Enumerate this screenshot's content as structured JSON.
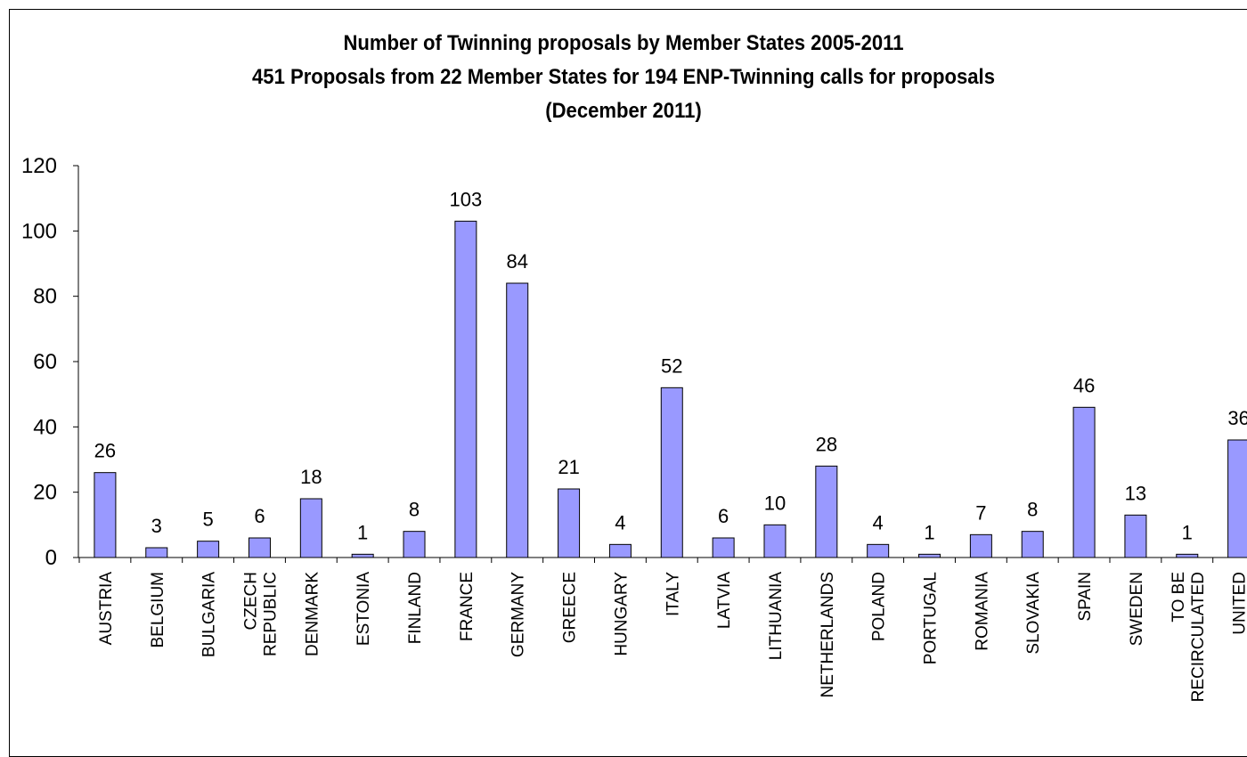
{
  "chart_data": {
    "type": "bar",
    "title": "Number of Twinning proposals by Member States 2005-2011",
    "subtitle": "451 Proposals from 22 Member States for 194 ENP-Twinning calls for proposals",
    "subtitle2": "(December 2011)",
    "xlabel": "",
    "ylabel": "",
    "ylim": [
      0,
      120
    ],
    "yticks": [
      0,
      20,
      40,
      60,
      80,
      100,
      120
    ],
    "grid": false,
    "legend": "none",
    "bar_color": "#9999FF",
    "categories": [
      [
        "AUSTRIA"
      ],
      [
        "BELGIUM"
      ],
      [
        "BULGARIA"
      ],
      [
        "CZECH",
        "REPUBLIC"
      ],
      [
        "DENMARK"
      ],
      [
        "ESTONIA"
      ],
      [
        "FINLAND"
      ],
      [
        "FRANCE"
      ],
      [
        "GERMANY"
      ],
      [
        "GREECE"
      ],
      [
        "HUNGARY"
      ],
      [
        "ITALY"
      ],
      [
        "LATVIA"
      ],
      [
        "LITHUANIA"
      ],
      [
        "NETHERLANDS"
      ],
      [
        "POLAND"
      ],
      [
        "PORTUGAL"
      ],
      [
        "ROMANIA"
      ],
      [
        "SLOVAKIA"
      ],
      [
        "SPAIN"
      ],
      [
        "SWEDEN"
      ],
      [
        "TO BE",
        "RECIRCULATED"
      ],
      [
        "UNITED"
      ]
    ],
    "values": [
      26,
      3,
      5,
      6,
      18,
      1,
      8,
      103,
      84,
      21,
      4,
      52,
      6,
      10,
      28,
      4,
      1,
      7,
      8,
      46,
      13,
      1,
      36
    ],
    "data_labels": [
      "26",
      "3",
      "5",
      "6",
      "18",
      "1",
      "8",
      "103",
      "84",
      "21",
      "4",
      "52",
      "6",
      "10",
      "28",
      "4",
      "1",
      "7",
      "8",
      "46",
      "13",
      "1",
      "36"
    ]
  }
}
